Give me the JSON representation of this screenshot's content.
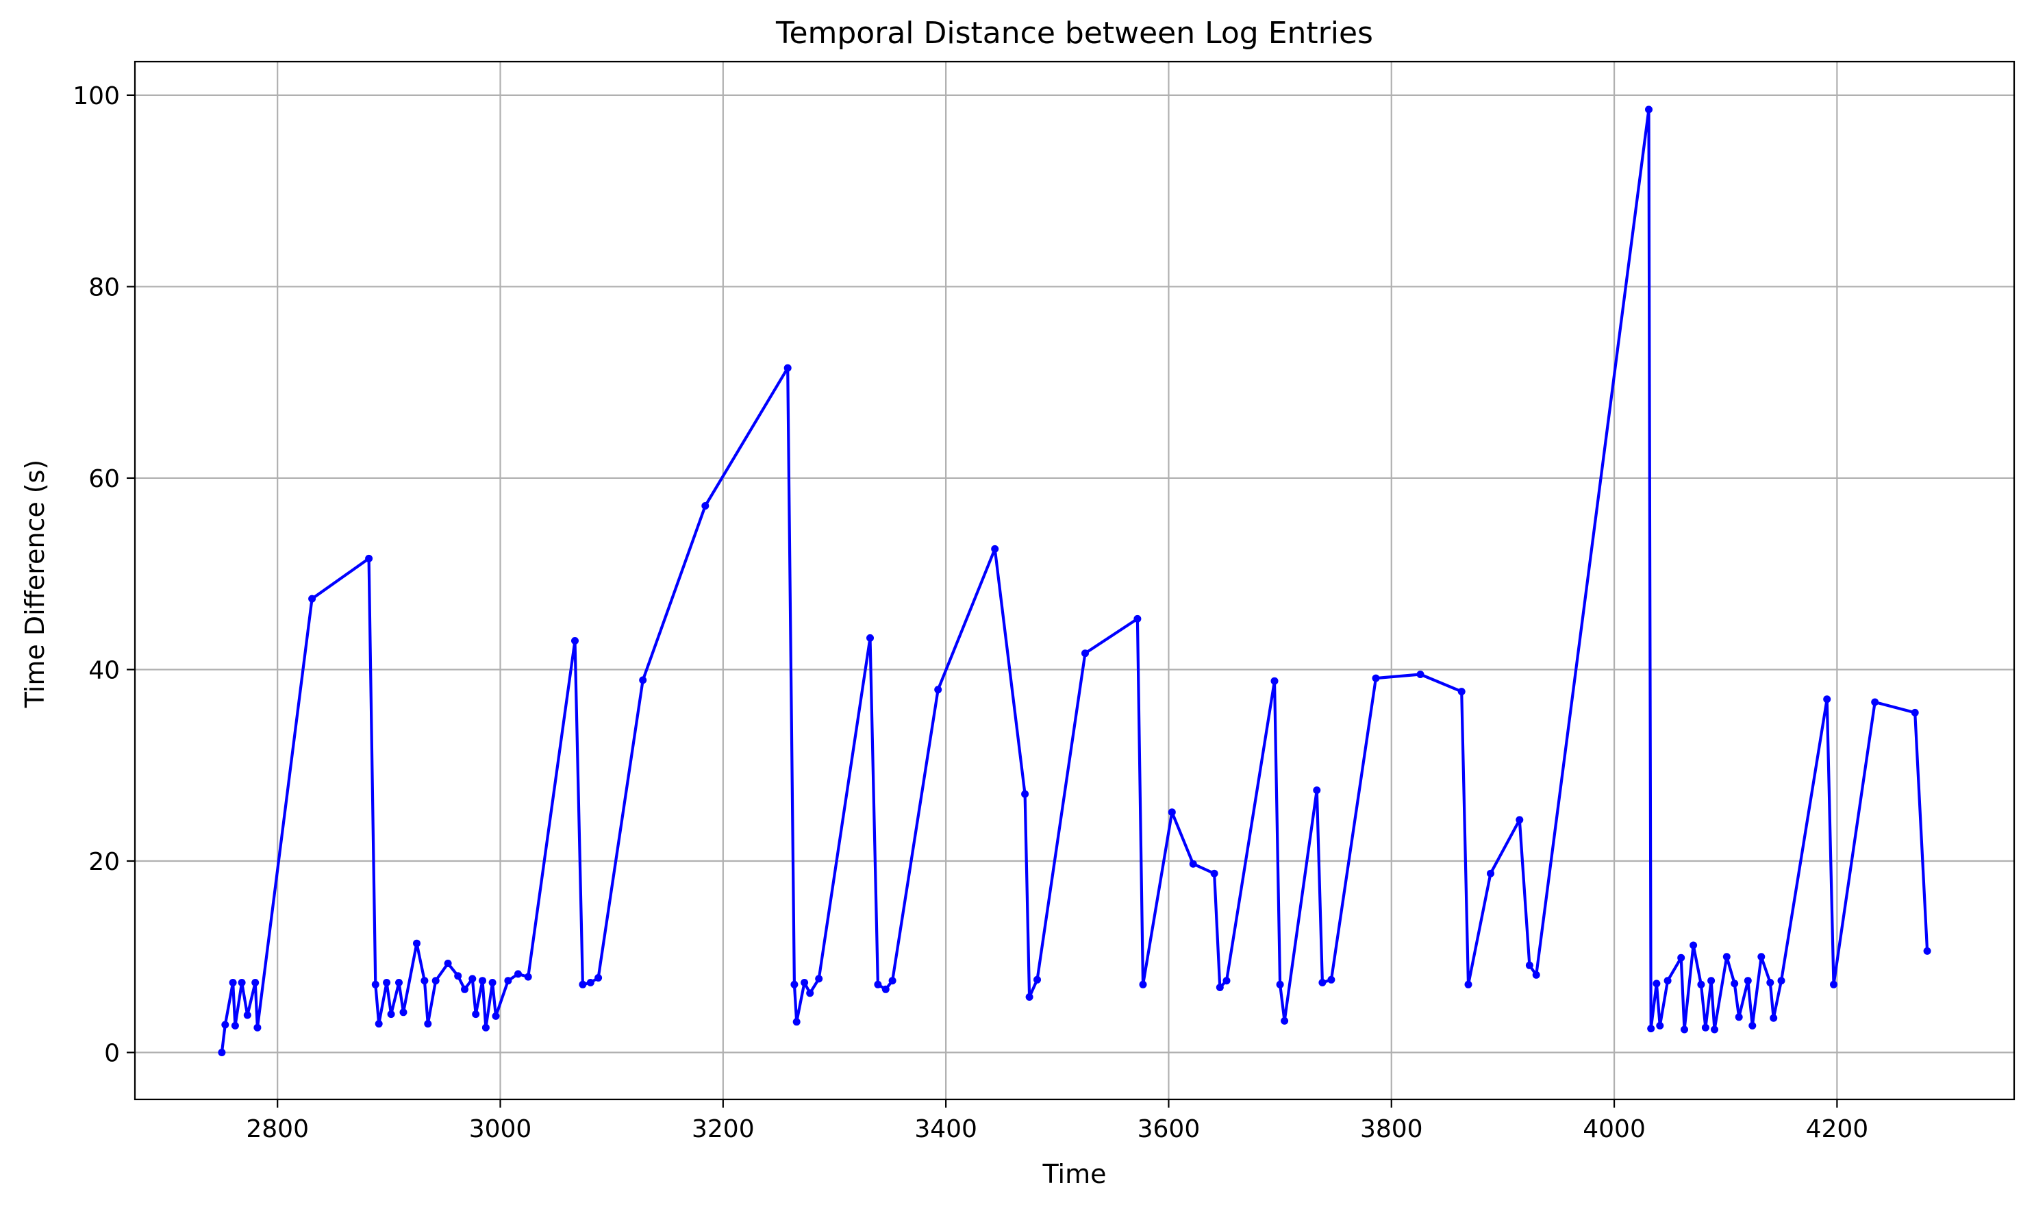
{
  "chart_data": {
    "type": "line",
    "title": "Temporal Distance between Log Entries",
    "xlabel": "Time",
    "ylabel": "Time Difference (s)",
    "xlim": [
      2672,
      4359
    ],
    "ylim": [
      -4.9,
      103.5
    ],
    "xticks": [
      2800,
      3000,
      3200,
      3400,
      3600,
      3800,
      4000,
      4200
    ],
    "yticks": [
      0,
      20,
      40,
      60,
      80,
      100
    ],
    "grid": true,
    "line_color": "#0000ff",
    "series": [
      {
        "x": [
          2750,
          2753,
          2760,
          2762,
          2768,
          2773,
          2780,
          2782,
          2831,
          2882,
          2888,
          2891,
          2898,
          2902,
          2909,
          2913,
          2925,
          2932,
          2935,
          2942,
          2953,
          2962,
          2968,
          2975,
          2978,
          2984,
          2987,
          2993,
          2996,
          3007,
          3016,
          3025,
          3067,
          3074,
          3081,
          3088,
          3128,
          3184,
          3258,
          3264,
          3266,
          3273,
          3278,
          3286,
          3332,
          3339,
          3346,
          3352,
          3393,
          3444,
          3471,
          3475,
          3482,
          3525,
          3572,
          3577,
          3603,
          3622,
          3641,
          3646,
          3652,
          3695,
          3700,
          3704,
          3733,
          3738,
          3746,
          3786,
          3826,
          3863,
          3869,
          3889,
          3915,
          3924,
          3930,
          4031,
          4033,
          4038,
          4041,
          4048,
          4060,
          4063,
          4071,
          4078,
          4082,
          4087,
          4090,
          4101,
          4108,
          4112,
          4120,
          4124,
          4132,
          4140,
          4143,
          4150,
          4191,
          4197,
          4234,
          4270,
          4281
        ],
        "y": [
          0.0,
          2.9,
          7.3,
          2.8,
          7.3,
          3.9,
          7.3,
          2.6,
          47.4,
          51.6,
          7.1,
          3.0,
          7.3,
          4.0,
          7.3,
          4.2,
          11.4,
          7.5,
          3.0,
          7.5,
          9.3,
          8.0,
          6.6,
          7.7,
          4.0,
          7.5,
          2.6,
          7.3,
          3.8,
          7.5,
          8.2,
          7.9,
          43.0,
          7.1,
          7.3,
          7.8,
          38.9,
          57.1,
          71.5,
          7.1,
          3.2,
          7.3,
          6.2,
          7.7,
          43.3,
          7.1,
          6.6,
          7.5,
          37.9,
          52.6,
          27.0,
          5.8,
          7.6,
          41.7,
          45.3,
          7.1,
          25.1,
          19.7,
          18.7,
          6.8,
          7.5,
          38.8,
          7.1,
          3.3,
          27.4,
          7.3,
          7.6,
          39.1,
          39.5,
          37.7,
          7.1,
          18.7,
          24.3,
          9.1,
          8.1,
          98.5,
          2.5,
          7.2,
          2.8,
          7.5,
          9.9,
          2.4,
          11.2,
          7.1,
          2.6,
          7.5,
          2.4,
          10.0,
          7.2,
          3.7,
          7.5,
          2.8,
          10.0,
          7.3,
          3.6,
          7.5,
          36.9,
          7.1,
          36.6,
          35.5,
          10.6
        ]
      }
    ]
  }
}
